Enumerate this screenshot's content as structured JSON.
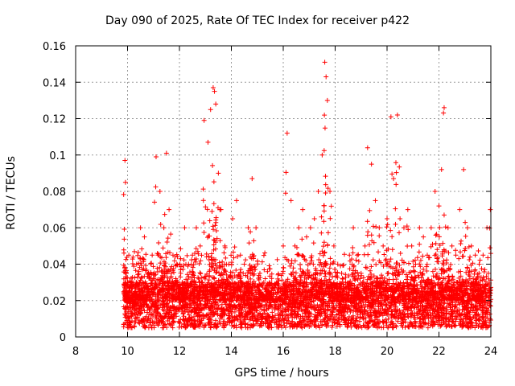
{
  "chart_data": {
    "type": "scatter",
    "title": "Day 090 of 2025, Rate Of TEC Index for receiver p422",
    "xlabel": "GPS time / hours",
    "ylabel": "ROTI / TECUs",
    "xlim": [
      8,
      24
    ],
    "ylim": [
      0,
      0.16
    ],
    "xticks": [
      "8",
      "10",
      "12",
      "14",
      "16",
      "18",
      "20",
      "22",
      "24"
    ],
    "yticks": [
      "0",
      "0.02",
      "0.04",
      "0.06",
      "0.08",
      "0.1",
      "0.12",
      "0.14",
      "0.16"
    ],
    "grid": true,
    "marker": "+",
    "marker_color": "#ff0000",
    "series": [
      {
        "name": "p422 ROTI",
        "x": [
          9.9,
          9.92,
          9.95,
          10.05,
          10.2,
          10.35,
          10.5,
          10.65,
          10.8,
          10.95,
          11.1,
          11.25,
          11.4,
          11.5,
          11.6,
          11.75,
          11.9,
          12.05,
          12.2,
          12.35,
          12.5,
          12.65,
          12.8,
          12.95,
          13.1,
          13.2,
          13.3,
          13.35,
          13.4,
          13.5,
          13.6,
          13.75,
          13.9,
          14.05,
          14.2,
          14.35,
          14.5,
          14.65,
          14.8,
          14.95,
          15.1,
          15.25,
          15.4,
          15.55,
          15.7,
          15.85,
          16.0,
          16.15,
          16.3,
          16.45,
          16.6,
          16.75,
          16.9,
          17.05,
          17.2,
          17.35,
          17.5,
          17.6,
          17.65,
          17.7,
          17.8,
          17.95,
          18.1,
          18.25,
          18.4,
          18.55,
          18.7,
          18.85,
          19.0,
          19.15,
          19.25,
          19.4,
          19.55,
          19.7,
          19.85,
          20.0,
          20.15,
          20.25,
          20.4,
          20.5,
          20.65,
          20.8,
          20.95,
          21.1,
          21.25,
          21.4,
          21.55,
          21.7,
          21.85,
          22.0,
          22.1,
          22.2,
          22.35,
          22.5,
          22.65,
          22.8,
          22.95,
          23.1,
          23.25,
          23.4,
          23.55,
          23.7,
          23.85,
          23.98
        ],
        "y": [
          0.097,
          0.085,
          0.035,
          0.045,
          0.03,
          0.04,
          0.06,
          0.055,
          0.035,
          0.045,
          0.099,
          0.08,
          0.06,
          0.101,
          0.07,
          0.045,
          0.04,
          0.035,
          0.06,
          0.04,
          0.045,
          0.06,
          0.05,
          0.119,
          0.107,
          0.125,
          0.137,
          0.135,
          0.128,
          0.09,
          0.07,
          0.05,
          0.04,
          0.065,
          0.075,
          0.045,
          0.04,
          0.06,
          0.087,
          0.06,
          0.035,
          0.03,
          0.025,
          0.022,
          0.02,
          0.022,
          0.05,
          0.112,
          0.075,
          0.05,
          0.06,
          0.07,
          0.055,
          0.06,
          0.065,
          0.08,
          0.1,
          0.151,
          0.143,
          0.13,
          0.08,
          0.05,
          0.04,
          0.035,
          0.03,
          0.045,
          0.06,
          0.045,
          0.035,
          0.05,
          0.104,
          0.095,
          0.075,
          0.06,
          0.05,
          0.065,
          0.121,
          0.087,
          0.122,
          0.065,
          0.06,
          0.07,
          0.05,
          0.04,
          0.06,
          0.055,
          0.045,
          0.06,
          0.08,
          0.072,
          0.092,
          0.126,
          0.06,
          0.05,
          0.045,
          0.07,
          0.092,
          0.06,
          0.05,
          0.045,
          0.04,
          0.045,
          0.06,
          0.07
        ]
      }
    ],
    "background_noise": {
      "x_range": [
        9.85,
        24.0
      ],
      "baseline_range": [
        0.005,
        0.03
      ],
      "count": 4200
    }
  }
}
